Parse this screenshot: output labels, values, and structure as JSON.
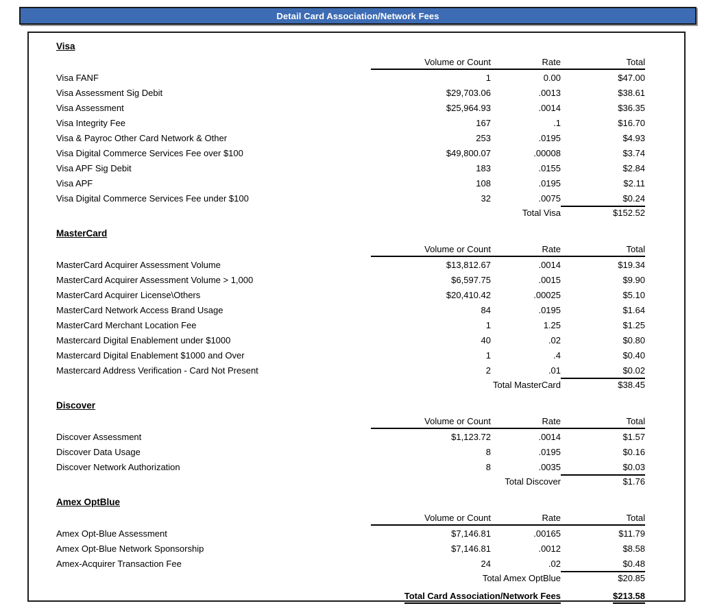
{
  "title": "Detail Card Association/Network Fees",
  "columns": {
    "volume": "Volume or Count",
    "rate": "Rate",
    "total": "Total"
  },
  "sections": [
    {
      "name": "Visa",
      "rows": [
        {
          "label": "Visa FANF",
          "volume": "1",
          "rate": "0.00",
          "total": "$47.00"
        },
        {
          "label": "Visa Assessment Sig Debit",
          "volume": "$29,703.06",
          "rate": ".0013",
          "total": "$38.61"
        },
        {
          "label": "Visa Assessment",
          "volume": "$25,964.93",
          "rate": ".0014",
          "total": "$36.35"
        },
        {
          "label": "Visa Integrity Fee",
          "volume": "167",
          "rate": ".1",
          "total": "$16.70"
        },
        {
          "label": "Visa & Payroc Other Card Network & Other",
          "volume": "253",
          "rate": ".0195",
          "total": "$4.93"
        },
        {
          "label": "Visa Digital Commerce Services Fee over $100",
          "volume": "$49,800.07",
          "rate": ".00008",
          "total": "$3.74"
        },
        {
          "label": "Visa APF Sig Debit",
          "volume": "183",
          "rate": ".0155",
          "total": "$2.84"
        },
        {
          "label": "Visa APF",
          "volume": "108",
          "rate": ".0195",
          "total": "$2.11"
        },
        {
          "label": "Visa Digital Commerce Services Fee under $100",
          "volume": "32",
          "rate": ".0075",
          "total": "$0.24"
        }
      ],
      "total_label": "Total Visa",
      "total_value": "$152.52"
    },
    {
      "name": "MasterCard",
      "rows": [
        {
          "label": "MasterCard Acquirer Assessment Volume",
          "volume": "$13,812.67",
          "rate": ".0014",
          "total": "$19.34"
        },
        {
          "label": "MasterCard Acquirer Assessment Volume > 1,000",
          "volume": "$6,597.75",
          "rate": ".0015",
          "total": "$9.90"
        },
        {
          "label": "MasterCard Acquirer License\\Others",
          "volume": "$20,410.42",
          "rate": ".00025",
          "total": "$5.10"
        },
        {
          "label": "MasterCard Network Access Brand Usage",
          "volume": "84",
          "rate": ".0195",
          "total": "$1.64"
        },
        {
          "label": "MasterCard Merchant Location Fee",
          "volume": "1",
          "rate": "1.25",
          "total": "$1.25"
        },
        {
          "label": "Mastercard Digital Enablement under $1000",
          "volume": "40",
          "rate": ".02",
          "total": "$0.80"
        },
        {
          "label": "Mastercard Digital Enablement $1000 and Over",
          "volume": "1",
          "rate": ".4",
          "total": "$0.40"
        },
        {
          "label": "Mastercard Address Verification - Card Not Present",
          "volume": "2",
          "rate": ".01",
          "total": "$0.02"
        }
      ],
      "total_label": "Total MasterCard",
      "total_value": "$38.45"
    },
    {
      "name": "Discover",
      "rows": [
        {
          "label": "Discover Assessment",
          "volume": "$1,123.72",
          "rate": ".0014",
          "total": "$1.57"
        },
        {
          "label": "Discover Data Usage",
          "volume": "8",
          "rate": ".0195",
          "total": "$0.16"
        },
        {
          "label": "Discover Network Authorization",
          "volume": "8",
          "rate": ".0035",
          "total": "$0.03"
        }
      ],
      "total_label": "Total Discover",
      "total_value": "$1.76"
    },
    {
      "name": "Amex OptBlue",
      "rows": [
        {
          "label": "Amex Opt-Blue Assessment",
          "volume": "$7,146.81",
          "rate": ".00165",
          "total": "$11.79"
        },
        {
          "label": "Amex Opt-Blue Network Sponsorship",
          "volume": "$7,146.81",
          "rate": ".0012",
          "total": "$8.58"
        },
        {
          "label": "Amex-Acquirer Transaction Fee",
          "volume": "24",
          "rate": ".02",
          "total": "$0.48"
        }
      ],
      "total_label": "Total Amex OptBlue",
      "total_value": "$20.85"
    }
  ],
  "grand_total": {
    "label": "Total Card Association/Network Fees",
    "value": "$213.58"
  },
  "colors": {
    "banner_bg": "#3d6cb4",
    "banner_text": "#ffffff",
    "border": "#1c1c1c"
  }
}
